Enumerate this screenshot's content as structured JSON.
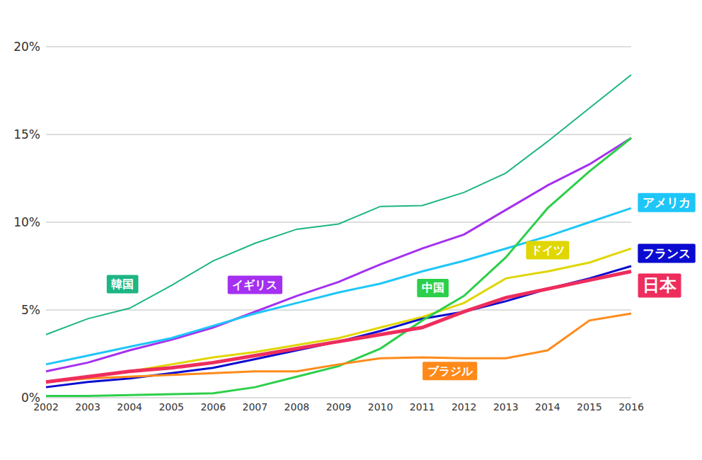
{
  "chart_data": {
    "type": "line",
    "categories": [
      "2002",
      "2003",
      "2004",
      "2005",
      "2006",
      "2007",
      "2008",
      "2009",
      "2010",
      "2011",
      "2012",
      "2013",
      "2014",
      "2015",
      "2016"
    ],
    "series": [
      {
        "name": "韓国",
        "color": "#1db584",
        "values": [
          3.6,
          4.5,
          5.1,
          6.4,
          7.8,
          8.8,
          9.6,
          9.9,
          10.9,
          10.95,
          11.7,
          12.8,
          14.6,
          16.5,
          18.4
        ]
      },
      {
        "name": "イギリス",
        "color": "#a530f0",
        "values": [
          1.5,
          2.0,
          2.7,
          3.3,
          4.0,
          4.9,
          5.8,
          6.6,
          7.6,
          8.5,
          9.3,
          10.7,
          12.1,
          13.3,
          14.8
        ]
      },
      {
        "name": "アメリカ",
        "color": "#1ec6f8",
        "values": [
          1.9,
          2.4,
          2.9,
          3.4,
          4.1,
          4.8,
          5.4,
          6.0,
          6.5,
          7.2,
          7.8,
          8.5,
          9.2,
          10.0,
          10.8
        ]
      },
      {
        "name": "ドイツ",
        "color": "#e0d600",
        "values": [
          0.9,
          1.2,
          1.5,
          1.9,
          2.3,
          2.6,
          3.0,
          3.4,
          4.0,
          4.6,
          5.4,
          6.8,
          7.2,
          7.7,
          8.5
        ]
      },
      {
        "name": "フランス",
        "color": "#0a0ad0",
        "values": [
          0.6,
          0.9,
          1.1,
          1.4,
          1.7,
          2.2,
          2.7,
          3.2,
          3.8,
          4.5,
          4.9,
          5.5,
          6.2,
          6.8,
          7.5
        ]
      },
      {
        "name": "中国",
        "color": "#2ccf4a",
        "values": [
          0.1,
          0.1,
          0.15,
          0.2,
          0.25,
          0.6,
          1.2,
          1.8,
          2.8,
          4.4,
          5.8,
          8.0,
          10.8,
          12.9,
          14.8
        ]
      },
      {
        "name": "ブラジル",
        "color": "#ff8a1a",
        "values": [
          0.9,
          1.1,
          1.2,
          1.3,
          1.4,
          1.5,
          1.5,
          1.9,
          2.25,
          2.3,
          2.25,
          2.25,
          2.7,
          4.4,
          4.8
        ]
      },
      {
        "name": "日本",
        "color": "#ee2d5c",
        "values": [
          0.9,
          1.2,
          1.5,
          1.7,
          2.0,
          2.4,
          2.8,
          3.2,
          3.6,
          4.0,
          4.9,
          5.7,
          6.2,
          6.7,
          7.2
        ]
      }
    ],
    "ylim": [
      0,
      20
    ],
    "yticks": [
      {
        "value": 0,
        "label": "0%"
      },
      {
        "value": 5,
        "label": "5%"
      },
      {
        "value": 10,
        "label": "10%"
      },
      {
        "value": 15,
        "label": "15%"
      },
      {
        "value": 20,
        "label": "20%"
      }
    ],
    "grid": true
  }
}
